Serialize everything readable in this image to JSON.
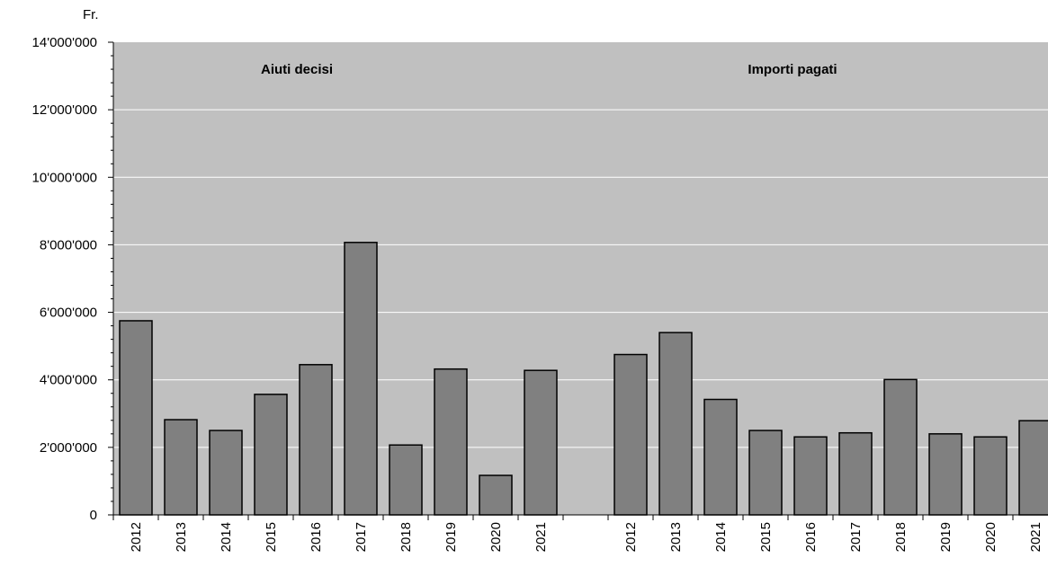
{
  "chart_data": {
    "type": "bar",
    "unit_label": "Fr.",
    "ylim": [
      0,
      14000000
    ],
    "y_tick_labels": [
      "0",
      "2'000'000",
      "4'000'000",
      "6'000'000",
      "8'000'000",
      "10'000'000",
      "12'000'000",
      "14'000'000"
    ],
    "grid": true,
    "plot_background": "#c0c0c0",
    "bar_color": "#808080",
    "groups": [
      {
        "label": "Aiuti decisi",
        "categories": [
          "2012",
          "2013",
          "2014",
          "2015",
          "2016",
          "2017",
          "2018",
          "2019",
          "2020",
          "2021"
        ],
        "values": [
          5750000,
          2820000,
          2500000,
          3570000,
          4450000,
          8070000,
          2070000,
          4320000,
          1170000,
          4280000
        ]
      },
      {
        "label": "Importi pagati",
        "categories": [
          "2012",
          "2013",
          "2014",
          "2015",
          "2016",
          "2017",
          "2018",
          "2019",
          "2020",
          "2021"
        ],
        "values": [
          4750000,
          5400000,
          3420000,
          2500000,
          2310000,
          2430000,
          4010000,
          2400000,
          2310000,
          2790000
        ]
      }
    ]
  }
}
